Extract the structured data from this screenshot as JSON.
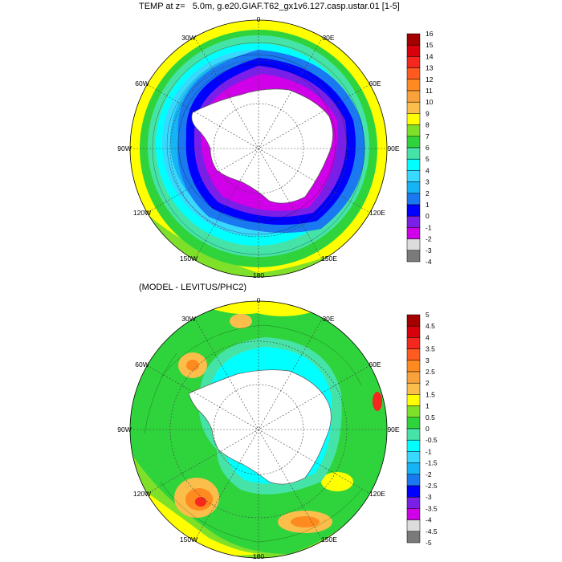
{
  "panels": [
    {
      "title": "TEMP at z=   5.0m, g.e20.GIAF.T62_gx1v6.127.casp.ustar.01 [1-5]",
      "lon_labels": [
        "0",
        "30E",
        "60E",
        "90E",
        "120E",
        "150E",
        "180",
        "150W",
        "120W",
        "90W",
        "60W",
        "30W"
      ],
      "colorbar": {
        "labels": [
          "16",
          "15",
          "14",
          "13",
          "12",
          "11",
          "10",
          "9",
          "8",
          "7",
          "6",
          "5",
          "4",
          "3",
          "2",
          "1",
          "0",
          "-1",
          "-2",
          "-3",
          "-4"
        ],
        "colors": [
          "#a50000",
          "#d7000c",
          "#f5271f",
          "#ff5a1f",
          "#ff8a1f",
          "#f9a23b",
          "#fbbe4a",
          "#ffff00",
          "#7fe02a",
          "#2fd43c",
          "#46e3a8",
          "#00ffff",
          "#39d8ff",
          "#14b4f5",
          "#1a78f0",
          "#0000ff",
          "#7a1fe8",
          "#d000e8",
          "#dcdcdc",
          "#7a7a7a"
        ]
      }
    },
    {
      "title": "(MODEL - LEVITUS/PHC2)",
      "lon_labels": [
        "0",
        "30E",
        "60E",
        "90E",
        "120E",
        "150E",
        "180",
        "150W",
        "120W",
        "90W",
        "60W",
        "30W"
      ],
      "colorbar": {
        "labels": [
          "5",
          "4.5",
          "4",
          "3.5",
          "3",
          "2.5",
          "2",
          "1.5",
          "1",
          "0.5",
          "0",
          "-0.5",
          "-1",
          "-1.5",
          "-2",
          "-2.5",
          "-3",
          "-3.5",
          "-4",
          "-4.5",
          "-5"
        ],
        "colors": [
          "#a50000",
          "#d7000c",
          "#f5271f",
          "#ff5a1f",
          "#ff8a1f",
          "#f9a23b",
          "#fbbe4a",
          "#ffff00",
          "#7fe02a",
          "#2fd43c",
          "#46e3a8",
          "#00ffff",
          "#39d8ff",
          "#14b4f5",
          "#1a78f0",
          "#0000ff",
          "#7a1fe8",
          "#d000e8",
          "#dcdcdc",
          "#7a7a7a"
        ]
      }
    }
  ]
}
